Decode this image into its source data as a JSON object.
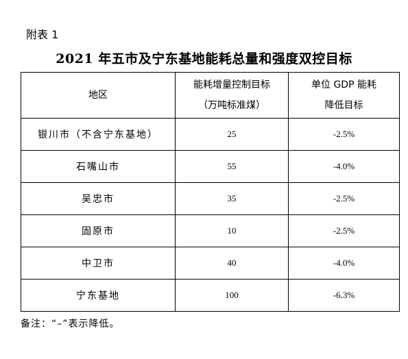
{
  "appendix_label": "附表 1",
  "title": "2021 年五市及宁东基地能耗总量和强度双控目标",
  "table": {
    "headers": {
      "region": "地区",
      "energy_line1": "能耗增量控制目标",
      "energy_line2": "（万吨标准煤）",
      "gdp_line1": "单位 GDP 能耗",
      "gdp_line2": "降低目标"
    },
    "rows": [
      {
        "region": "银川市（不含宁东基地）",
        "energy": "25",
        "gdp": "-2.5%"
      },
      {
        "region": "石嘴山市",
        "energy": "55",
        "gdp": "-4.0%"
      },
      {
        "region": "吴忠市",
        "energy": "35",
        "gdp": "-2.5%"
      },
      {
        "region": "固原市",
        "energy": "10",
        "gdp": "-2.5%"
      },
      {
        "region": "中卫市",
        "energy": "40",
        "gdp": "-4.0%"
      },
      {
        "region": "宁东基地",
        "energy": "100",
        "gdp": "-6.3%"
      }
    ]
  },
  "note": "备注：“–”表示降低。"
}
